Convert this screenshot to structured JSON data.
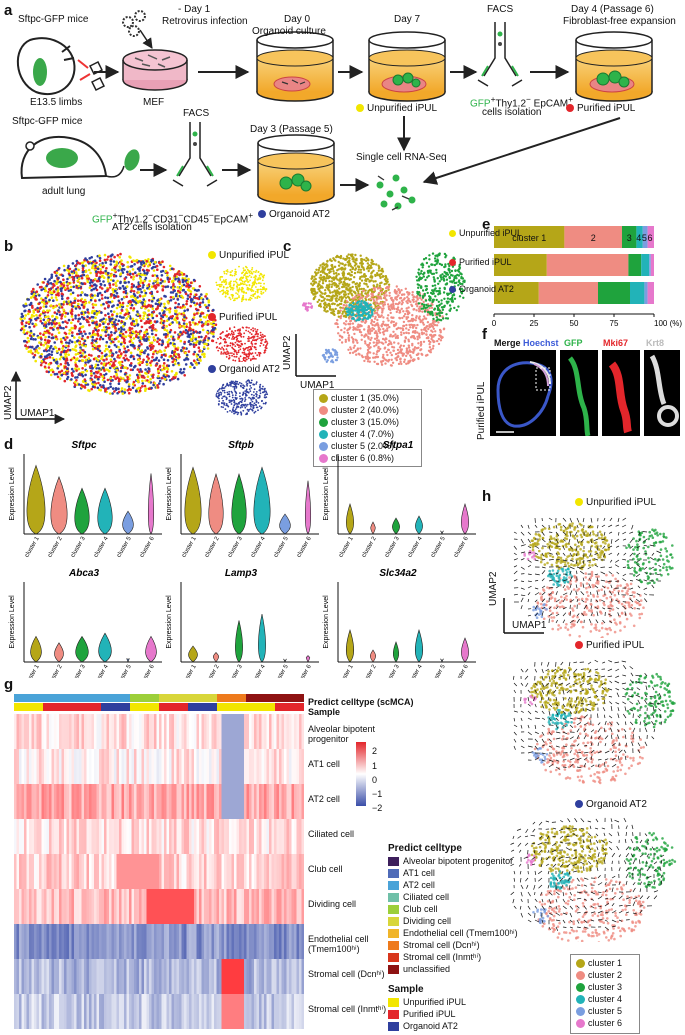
{
  "panels": {
    "a": "a",
    "b": "b",
    "c": "c",
    "d": "d",
    "e": "e",
    "f": "f",
    "g": "g",
    "h": "h"
  },
  "a": {
    "mouse1": "Sftpc-GFP mice",
    "limbs": "E13.5 limbs",
    "minus1": "- Day 1",
    "retro": "Retrovirus infection",
    "mef": "MEF",
    "day0": "Day 0",
    "organoid_culture": "Organoid culture",
    "day7": "Day 7",
    "unpurified": "Unpurified iPUL",
    "facs1": "FACS",
    "gfp1": "GFP",
    "thy1": "Thy1.2",
    "epcam1": " EpCAM",
    "cells_isolation": "cells isolation",
    "day4": "Day 4 (Passage 6)",
    "fibro": "Fibroblast-free expansion",
    "purified": "Purified iPUL",
    "mouse2": "Sftpc-GFP mice",
    "adult_lung": "adult lung",
    "facs2": "FACS",
    "gfp2": "GFP",
    "markers2": "Thy1.2",
    "markers2b": "CD31",
    "markers2c": "CD45",
    "markers2d": "EpCAM",
    "at2_iso": "AT2 cells isolation",
    "day3": "Day 3 (Passage 5)",
    "organoid_at2": "Organoid AT2",
    "scrna": "Single cell RNA-Seq"
  },
  "b": {
    "legend": [
      "Unpurified iPUL",
      "Purified iPUL",
      "Organoid AT2"
    ],
    "colors": [
      "#f2e600",
      "#e3262b",
      "#2f3f9e"
    ],
    "umap1": "UMAP1",
    "umap2": "UMAP2"
  },
  "c": {
    "clusters": [
      {
        "label": "cluster 1",
        "pct": "(35.0%)",
        "color": "#b5a618"
      },
      {
        "label": "cluster 2",
        "pct": "(40.0%)",
        "color": "#ef8c82"
      },
      {
        "label": "cluster 3",
        "pct": "(15.0%)",
        "color": "#1fa33d"
      },
      {
        "label": "cluster 4",
        "pct": "(7.0%)",
        "color": "#22b3b8"
      },
      {
        "label": "cluster 5",
        "pct": "(2.0%)",
        "color": "#7a9ee0"
      },
      {
        "label": "cluster 6",
        "pct": "(0.8%)",
        "color": "#e678cc"
      }
    ],
    "umap1": "UMAP1",
    "umap2": "UMAP2"
  },
  "d": {
    "ylabel": "Expression Level",
    "xcats": [
      "cluster 1",
      "cluster 2",
      "cluster 3",
      "cluster 4",
      "cluster 5",
      "cluster 6"
    ],
    "genes": [
      "Sftpc",
      "Sftpb",
      "Sftpa1",
      "Abca3",
      "Lamp3",
      "Slc34a2"
    ]
  },
  "e": {
    "rows": [
      "Unpurified iPUL",
      "Purified iPUL",
      "Organoid AT2"
    ],
    "bar_labels": [
      "cluster 1",
      "2",
      "3",
      "4",
      "5",
      "6"
    ],
    "ticks": [
      "0",
      "25",
      "50",
      "75",
      "100 (%)"
    ]
  },
  "f": {
    "merge": "Merge",
    "hoechst": "Hoechst",
    "gfp": "GFP",
    "mki67": "Mki67",
    "krt8": "Krt8",
    "side": "Purified iPUL"
  },
  "g": {
    "top1": "Predict celltype (scMCA)",
    "top2": "Sample",
    "rows": [
      "Alveolar bipotent progenitor",
      "AT1 cell",
      "AT2 cell",
      "Ciliated cell",
      "Club cell",
      "Dividing cell",
      "Endothelial cell (Tmem100ʰⁱ)",
      "Stromal cell (Dcnʰⁱ)",
      "Stromal cell (Inmtʰⁱ)"
    ],
    "scale": [
      "2",
      "1",
      "0",
      "−1",
      "−2"
    ],
    "legend_title": "Predict celltype",
    "legend": [
      {
        "label": "Alveolar bipotent progenitor",
        "color": "#3d1f5c"
      },
      {
        "label": "AT1 cell",
        "color": "#4f6bb8"
      },
      {
        "label": "AT2 cell",
        "color": "#4aa3d8"
      },
      {
        "label": "Ciliated cell",
        "color": "#6fc0a8"
      },
      {
        "label": "Club cell",
        "color": "#9ccf3a"
      },
      {
        "label": "Dividing cell",
        "color": "#d8d63a"
      },
      {
        "label": "Endothelial cell (Tmem100ʰⁱ)",
        "color": "#f0b52a"
      },
      {
        "label": "Stromal cell (Dcnʰⁱ)",
        "color": "#ee7a1c"
      },
      {
        "label": "Stromal cell (Inmtʰⁱ)",
        "color": "#d8361c"
      },
      {
        "label": "unclassified",
        "color": "#8e1212"
      }
    ],
    "sample_title": "Sample",
    "sample_legend": [
      {
        "label": "Unpurified iPUL",
        "color": "#f2e600"
      },
      {
        "label": "Purified iPUL",
        "color": "#e3262b"
      },
      {
        "label": "Organoid AT2",
        "color": "#2f3f9e"
      }
    ]
  },
  "h": {
    "titles": [
      "Unpurified iPUL",
      "Purified iPUL",
      "Organoid AT2"
    ],
    "umap1": "UMAP1",
    "umap2": "UMAP2",
    "legend": [
      "cluster 1",
      "cluster 2",
      "cluster 3",
      "cluster 4",
      "cluster 5",
      "cluster 6"
    ]
  }
}
